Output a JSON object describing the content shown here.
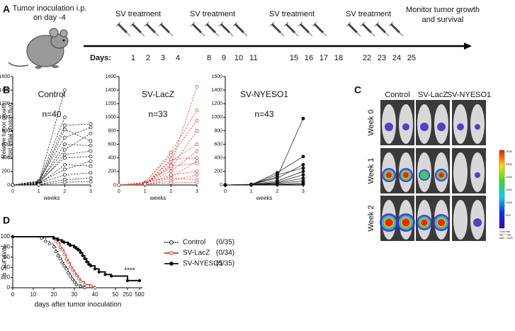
{
  "panel_a": {
    "label": "A",
    "inoculation": [
      "Tumor inoculation i.p.",
      "on day -4"
    ],
    "treatments": [
      "SV treatment",
      "SV treatment",
      "SV treatment",
      "SV treatment"
    ],
    "days_label": "Days:",
    "days": [
      1,
      2,
      3,
      4,
      8,
      9,
      10,
      11,
      15,
      16,
      17,
      18,
      22,
      23,
      24,
      25
    ],
    "monitor": [
      "Monitor tumor growth",
      "and survival"
    ]
  },
  "panel_b": {
    "label": "B"
  },
  "panel_c": {
    "label": "C",
    "columns": [
      "Control",
      "SV-LacZ",
      "SV-NYESO1"
    ],
    "rows": [
      "Week 0",
      "Week 1",
      "Week 2"
    ],
    "colorbar": {
      "ticks": [
        "3000",
        "2500",
        "2000",
        "1500",
        "1000",
        "500"
      ],
      "label_lines": [
        "Color Bar",
        "Min = 150",
        "Max = 3000"
      ]
    }
  },
  "panel_d": {
    "label": "D"
  },
  "chart_data": [
    {
      "type": "line",
      "title": "Control",
      "subtitle": "n=40",
      "y_label": [
        "Relative tumor growth",
        "(fold initial photon flux)"
      ],
      "x_label": "weeks",
      "color": "#111111",
      "line_style": "dashed",
      "marker": "open",
      "x": [
        0,
        1,
        2,
        3
      ],
      "xlim": [
        0,
        3
      ],
      "xticks": [
        0,
        1,
        2,
        3
      ],
      "ylim": [
        0,
        1600
      ],
      "yticks": [
        0,
        200,
        400,
        600,
        800,
        1000,
        1200,
        1400,
        1600
      ],
      "series": [
        {
          "values": [
            0,
            30,
            1400,
            null
          ]
        },
        {
          "values": [
            0,
            50,
            1000,
            null
          ]
        },
        {
          "values": [
            0,
            40,
            880,
            900
          ]
        },
        {
          "values": [
            0,
            25,
            820,
            650
          ]
        },
        {
          "values": [
            0,
            60,
            700,
            850
          ]
        },
        {
          "values": [
            0,
            20,
            600,
            580
          ]
        },
        {
          "values": [
            0,
            35,
            520,
            760
          ]
        },
        {
          "values": [
            0,
            15,
            450,
            500
          ]
        },
        {
          "values": [
            0,
            45,
            400,
            420
          ]
        },
        {
          "values": [
            0,
            10,
            300,
            280
          ]
        },
        {
          "values": [
            0,
            30,
            230,
            350
          ]
        },
        {
          "values": [
            0,
            20,
            150,
            180
          ]
        },
        {
          "values": [
            0,
            10,
            80,
            100
          ]
        },
        {
          "values": [
            0,
            5,
            40,
            50
          ]
        }
      ]
    },
    {
      "type": "line",
      "title": "SV-LacZ",
      "subtitle": "n=33",
      "x_label": "weeks",
      "color": "#d03a2a",
      "line_style": "dashed",
      "marker": "open",
      "x": [
        0,
        1,
        2,
        3
      ],
      "xlim": [
        0,
        3
      ],
      "xticks": [
        0,
        1,
        2,
        3
      ],
      "ylim": [
        0,
        1600
      ],
      "yticks": [
        0,
        200,
        400,
        600,
        800,
        1000,
        1200,
        1400,
        1600
      ],
      "series": [
        {
          "values": [
            0,
            20,
            300,
            1450
          ]
        },
        {
          "values": [
            0,
            30,
            480,
            1100
          ]
        },
        {
          "values": [
            0,
            40,
            440,
            950
          ]
        },
        {
          "values": [
            0,
            25,
            250,
            800
          ]
        },
        {
          "values": [
            0,
            15,
            350,
            600
          ]
        },
        {
          "values": [
            0,
            20,
            200,
            500
          ]
        },
        {
          "values": [
            0,
            10,
            380,
            400
          ]
        },
        {
          "values": [
            0,
            30,
            120,
            350
          ]
        },
        {
          "values": [
            0,
            5,
            280,
            320
          ]
        },
        {
          "values": [
            0,
            20,
            150,
            200
          ]
        },
        {
          "values": [
            0,
            10,
            60,
            150
          ]
        },
        {
          "values": [
            0,
            5,
            100,
            80
          ]
        },
        {
          "values": [
            0,
            15,
            30,
            40
          ]
        }
      ]
    },
    {
      "type": "line",
      "title": "SV-NYESO1",
      "subtitle": "n=43",
      "x_label": "weeks",
      "color": "#111111",
      "line_style": "solid",
      "marker": "filled",
      "x": [
        0,
        1,
        2,
        3
      ],
      "xlim": [
        0,
        3
      ],
      "xticks": [
        0,
        1,
        2,
        3
      ],
      "ylim": [
        0,
        1600
      ],
      "yticks": [
        0,
        200,
        400,
        600,
        800,
        1000,
        1200,
        1400,
        1600
      ],
      "series": [
        {
          "values": [
            0,
            10,
            120,
            980
          ]
        },
        {
          "values": [
            0,
            5,
            180,
            420
          ]
        },
        {
          "values": [
            0,
            10,
            100,
            300
          ]
        },
        {
          "values": [
            0,
            5,
            150,
            250
          ]
        },
        {
          "values": [
            0,
            8,
            60,
            200
          ]
        },
        {
          "values": [
            0,
            3,
            40,
            150
          ]
        },
        {
          "values": [
            0,
            5,
            30,
            100
          ]
        },
        {
          "values": [
            0,
            2,
            20,
            60
          ]
        },
        {
          "values": [
            0,
            4,
            10,
            30
          ]
        },
        {
          "values": [
            0,
            1,
            5,
            10
          ]
        }
      ]
    },
    {
      "type": "step",
      "y_label": "% Survival",
      "x_label": "days after tumor inoculation",
      "annotation": "****",
      "xticks": [
        0,
        10,
        20,
        30,
        40,
        50,
        250,
        500
      ],
      "ylim": [
        0,
        100
      ],
      "yticks": [
        0,
        20,
        40,
        60,
        80,
        100
      ],
      "series": [
        {
          "name": "Control",
          "count_label": "(0/35)",
          "color": "#111111",
          "line_style": "dotted",
          "marker": "open",
          "x": [
            0,
            14,
            16,
            18,
            20,
            21,
            22,
            23,
            24,
            25,
            26,
            27,
            28,
            29,
            30,
            31,
            33,
            35
          ],
          "values": [
            100,
            97,
            91,
            86,
            80,
            71,
            63,
            57,
            49,
            43,
            37,
            29,
            23,
            17,
            11,
            6,
            3,
            0
          ]
        },
        {
          "name": "SV-LacZ",
          "count_label": "(0/34)",
          "color": "#d03a2a",
          "line_style": "solid",
          "marker": "open",
          "x": [
            0,
            20,
            21,
            22,
            23,
            24,
            25,
            26,
            27,
            28,
            29,
            30,
            31,
            32,
            33,
            35,
            38,
            40
          ],
          "values": [
            100,
            97,
            91,
            88,
            79,
            74,
            65,
            56,
            50,
            41,
            35,
            29,
            24,
            18,
            12,
            6,
            3,
            0
          ]
        },
        {
          "name": "SV-NYESO1",
          "count_label": "(5/35)",
          "color": "#111111",
          "line_style": "solid",
          "marker": "filled",
          "x": [
            0,
            20,
            22,
            24,
            25,
            27,
            28,
            30,
            31,
            32,
            33,
            34,
            35,
            36,
            37,
            38,
            40,
            42,
            45,
            48,
            250,
            500
          ],
          "values": [
            100,
            97,
            94,
            91,
            89,
            86,
            83,
            80,
            77,
            74,
            69,
            63,
            57,
            51,
            46,
            43,
            37,
            31,
            26,
            23,
            14,
            14
          ]
        }
      ]
    }
  ]
}
